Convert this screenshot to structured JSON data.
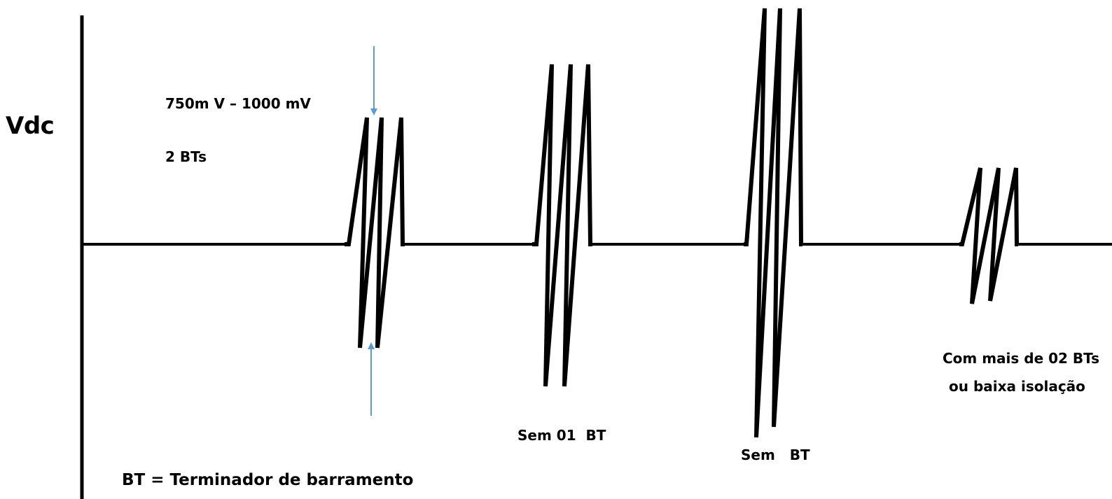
{
  "y_axis_label": "Vdc",
  "annotations": {
    "amplitude_range": "750m V – 1000 mV",
    "terminator_count": "2 BTs",
    "legend": "BT = Terminador de barramento"
  },
  "waveform_labels": {
    "missing_one": "Sem 01  BT",
    "missing_all": "Sem   BT",
    "extra_line1": "Com mais de 02 BTs",
    "extra_line2": "ou baixa isolação"
  },
  "colors": {
    "signal": "#000000",
    "arrow": "#5b9bd5"
  }
}
